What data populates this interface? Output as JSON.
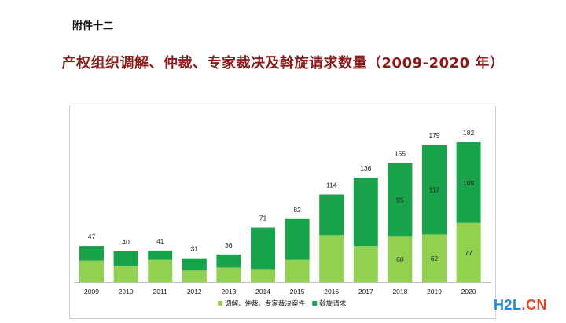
{
  "header": {
    "attachment": "附件十二",
    "title": "产权组织调解、仲裁、专家裁决及斡旋请求数量（2009-2020 年）"
  },
  "watermark": {
    "part1": "H2L",
    "part2": ".CN"
  },
  "chart_data": {
    "type": "bar",
    "stacked": true,
    "categories": [
      "2009",
      "2010",
      "2011",
      "2012",
      "2013",
      "2014",
      "2015",
      "2016",
      "2017",
      "2018",
      "2019",
      "2020"
    ],
    "totals": [
      47,
      40,
      41,
      31,
      36,
      71,
      82,
      114,
      136,
      155,
      179,
      182
    ],
    "series": [
      {
        "name": "调解、仲裁、专家裁决案件",
        "color": "#92d050",
        "values": [
          28,
          21,
          29,
          15,
          19,
          17,
          29,
          61,
          47,
          60,
          62,
          77
        ],
        "labels": [
          "",
          "",
          "",
          "",
          "",
          "",
          "",
          "",
          "",
          "60",
          "62",
          "77"
        ]
      },
      {
        "name": "斡旋请求",
        "color": "#18a34a",
        "values": [
          19,
          19,
          12,
          16,
          17,
          54,
          53,
          53,
          89,
          95,
          117,
          105
        ],
        "labels": [
          "",
          "",
          "",
          "",
          "",
          "",
          "",
          "",
          "",
          "95",
          "117",
          "105"
        ]
      }
    ],
    "ylim": [
      0,
      200
    ],
    "grid": false,
    "legend": "bottom"
  }
}
